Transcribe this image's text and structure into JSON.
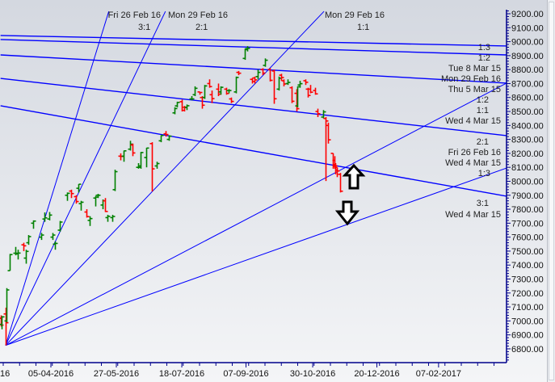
{
  "chart_data": {
    "type": "ohlc",
    "title": "",
    "xlabel": "",
    "ylabel": "",
    "ylim": [
      6700,
      9250
    ],
    "grid": false,
    "colors": {
      "up": "#008000",
      "down": "#ff0000",
      "lines": "#0000ff",
      "axis": "#00008b"
    },
    "y_ticks": [
      "9200.00",
      "9100.00",
      "9000.00",
      "8900.00",
      "8800.00",
      "8700.00",
      "8600.00",
      "8500.00",
      "8400.00",
      "8300.00",
      "8200.00",
      "8100.00",
      "8000.00",
      "7900.00",
      "7800.00",
      "7700.00",
      "7600.00",
      "7500.00",
      "7400.00",
      "7300.00",
      "7200.00",
      "7100.00",
      "7000.00",
      "6900.00",
      "6800.00"
    ],
    "x_ticks": [
      {
        "label": "16",
        "date": "2016-02-13"
      },
      {
        "label": "05-04-2016",
        "date": "2016-04-05"
      },
      {
        "label": "27-05-2016",
        "date": "2016-05-27"
      },
      {
        "label": "18-07-2016",
        "date": "2016-07-18"
      },
      {
        "label": "07-09-2016",
        "date": "2016-09-07"
      },
      {
        "label": "30-10-2016",
        "date": "2016-10-30"
      },
      {
        "label": "20-12-2016",
        "date": "2016-12-20"
      },
      {
        "label": "07-02-2017",
        "date": "2017-02-07"
      }
    ],
    "bars": [
      [
        "2016-02-23",
        7110,
        7120,
        7015,
        7019
      ],
      [
        "2016-02-25",
        7020,
        7040,
        6960,
        6970
      ],
      [
        "2016-02-26",
        6975,
        7035,
        6940,
        7029
      ],
      [
        "2016-02-29",
        7050,
        7095,
        6825,
        6987
      ],
      [
        "2016-03-01",
        7000,
        7235,
        6990,
        7222
      ],
      [
        "2016-03-03",
        7360,
        7480,
        7360,
        7475
      ],
      [
        "2016-03-08",
        7485,
        7530,
        7470,
        7485
      ],
      [
        "2016-03-10",
        7480,
        7510,
        7440,
        7486
      ],
      [
        "2016-03-14",
        7545,
        7560,
        7500,
        7538
      ],
      [
        "2016-03-16",
        7450,
        7510,
        7410,
        7498
      ],
      [
        "2016-03-18",
        7560,
        7615,
        7545,
        7604
      ],
      [
        "2016-03-22",
        7700,
        7720,
        7660,
        7715
      ],
      [
        "2016-03-28",
        7600,
        7630,
        7580,
        7615
      ],
      [
        "2016-03-31",
        7730,
        7777,
        7710,
        7738
      ],
      [
        "2016-04-04",
        7730,
        7780,
        7720,
        7758
      ],
      [
        "2016-04-06",
        7600,
        7630,
        7580,
        7615
      ],
      [
        "2016-04-08",
        7550,
        7570,
        7510,
        7555
      ],
      [
        "2016-04-12",
        7650,
        7716,
        7640,
        7708
      ],
      [
        "2016-04-18",
        7900,
        7920,
        7860,
        7914
      ],
      [
        "2016-04-21",
        7930,
        7940,
        7880,
        7912
      ],
      [
        "2016-04-25",
        7890,
        7900,
        7840,
        7855
      ],
      [
        "2016-04-27",
        7950,
        7980,
        7920,
        7979
      ],
      [
        "2016-04-29",
        7840,
        7860,
        7790,
        7850
      ],
      [
        "2016-05-03",
        7780,
        7800,
        7740,
        7747
      ],
      [
        "2016-05-06",
        7720,
        7750,
        7680,
        7733
      ],
      [
        "2016-05-10",
        7880,
        7895,
        7820,
        7887
      ],
      [
        "2016-05-12",
        7900,
        7910,
        7880,
        7900
      ],
      [
        "2016-05-16",
        7830,
        7870,
        7800,
        7860
      ],
      [
        "2016-05-18",
        7860,
        7880,
        7780,
        7784
      ],
      [
        "2016-05-20",
        7740,
        7760,
        7710,
        7749
      ],
      [
        "2016-05-24",
        7740,
        7760,
        7710,
        7748
      ],
      [
        "2016-05-26",
        7940,
        8083,
        7930,
        8069
      ],
      [
        "2016-05-30",
        8180,
        8200,
        8150,
        8178
      ],
      [
        "2016-06-02",
        8180,
        8220,
        8140,
        8218
      ],
      [
        "2016-06-07",
        8230,
        8290,
        8220,
        8266
      ],
      [
        "2016-06-09",
        8260,
        8270,
        8180,
        8203
      ],
      [
        "2016-06-13",
        8100,
        8130,
        8090,
        8110
      ],
      [
        "2016-06-15",
        8100,
        8210,
        8090,
        8206
      ],
      [
        "2016-06-20",
        8170,
        8240,
        8100,
        8238
      ],
      [
        "2016-06-24",
        8270,
        8280,
        7927,
        8089
      ],
      [
        "2016-06-28",
        8110,
        8140,
        8090,
        8127
      ],
      [
        "2016-07-01",
        8290,
        8330,
        8280,
        8328
      ],
      [
        "2016-07-05",
        8340,
        8360,
        8320,
        8335
      ],
      [
        "2016-07-08",
        8300,
        8330,
        8290,
        8323
      ],
      [
        "2016-07-12",
        8490,
        8530,
        8480,
        8521
      ],
      [
        "2016-07-14",
        8540,
        8570,
        8530,
        8565
      ],
      [
        "2016-07-18",
        8570,
        8585,
        8500,
        8508
      ],
      [
        "2016-07-20",
        8530,
        8540,
        8500,
        8528
      ],
      [
        "2016-07-22",
        8530,
        8550,
        8510,
        8541
      ],
      [
        "2016-07-26",
        8590,
        8610,
        8580,
        8590
      ],
      [
        "2016-07-28",
        8620,
        8680,
        8610,
        8666
      ],
      [
        "2016-08-01",
        8640,
        8640,
        8620,
        8636
      ],
      [
        "2016-08-03",
        8600,
        8610,
        8520,
        8545
      ],
      [
        "2016-08-05",
        8600,
        8690,
        8590,
        8683
      ],
      [
        "2016-08-09",
        8700,
        8730,
        8670,
        8678
      ],
      [
        "2016-08-11",
        8620,
        8650,
        8560,
        8592
      ],
      [
        "2016-08-16",
        8660,
        8700,
        8610,
        8624
      ],
      [
        "2016-08-18",
        8640,
        8680,
        8620,
        8673
      ],
      [
        "2016-08-22",
        8660,
        8670,
        8620,
        8629
      ],
      [
        "2016-08-24",
        8650,
        8660,
        8630,
        8650
      ],
      [
        "2016-08-26",
        8590,
        8600,
        8560,
        8572
      ],
      [
        "2016-08-30",
        8640,
        8750,
        8630,
        8744
      ],
      [
        "2016-09-01",
        8780,
        8790,
        8760,
        8774
      ],
      [
        "2016-09-06",
        8880,
        8950,
        8870,
        8943
      ],
      [
        "2016-09-08",
        8950,
        8968,
        8930,
        8952
      ],
      [
        "2016-09-12",
        8730,
        8740,
        8700,
        8715
      ],
      [
        "2016-09-14",
        8740,
        8750,
        8700,
        8726
      ],
      [
        "2016-09-16",
        8750,
        8800,
        8730,
        8780
      ],
      [
        "2016-09-20",
        8800,
        8810,
        8760,
        8775
      ],
      [
        "2016-09-22",
        8830,
        8880,
        8820,
        8867
      ],
      [
        "2016-09-26",
        8800,
        8810,
        8715,
        8723
      ],
      [
        "2016-09-29",
        8790,
        8800,
        8555,
        8591
      ],
      [
        "2016-10-03",
        8660,
        8750,
        8650,
        8738
      ],
      [
        "2016-10-05",
        8760,
        8770,
        8720,
        8743
      ],
      [
        "2016-10-07",
        8720,
        8730,
        8680,
        8697
      ],
      [
        "2016-10-10",
        8700,
        8730,
        8690,
        8708
      ],
      [
        "2016-10-13",
        8670,
        8680,
        8560,
        8573
      ],
      [
        "2016-10-17",
        8630,
        8660,
        8500,
        8520
      ],
      [
        "2016-10-18",
        8540,
        8680,
        8530,
        8677
      ],
      [
        "2016-10-20",
        8690,
        8720,
        8670,
        8699
      ],
      [
        "2016-10-24",
        8720,
        8730,
        8690,
        8709
      ],
      [
        "2016-10-26",
        8660,
        8670,
        8600,
        8615
      ],
      [
        "2016-10-28",
        8660,
        8690,
        8630,
        8638
      ],
      [
        "2016-11-01",
        8650,
        8670,
        8620,
        8626
      ],
      [
        "2016-11-03",
        8500,
        8520,
        8460,
        8484
      ],
      [
        "2016-11-07",
        8460,
        8510,
        8450,
        8497
      ],
      [
        "2016-11-09",
        8450,
        8460,
        8002,
        8432
      ],
      [
        "2016-11-11",
        8400,
        8420,
        8270,
        8297
      ],
      [
        "2016-11-15",
        8200,
        8200,
        8090,
        8108
      ],
      [
        "2016-11-16",
        8150,
        8180,
        8090,
        8111
      ],
      [
        "2016-11-17",
        8120,
        8130,
        8050,
        8080
      ],
      [
        "2016-11-18",
        8100,
        8100,
        8030,
        8074
      ],
      [
        "2016-11-21",
        8050,
        8060,
        7920,
        7929
      ]
    ],
    "gann_fan_up": {
      "origin": [
        "2016-02-29",
        6825
      ],
      "lines": [
        {
          "to": [
            "2016-05-21",
            9217
          ]
        },
        {
          "to": [
            "2016-07-05",
            9217
          ]
        },
        {
          "to": [
            "2016-11-08",
            9217
          ]
        },
        {
          "to": [
            "2017-04-02",
            8703
          ]
        },
        {
          "to": [
            "2017-04-02",
            8095
          ]
        }
      ]
    },
    "gann_fan_down": {
      "lines": [
        {
          "from": [
            "2016-02-25",
            9044
          ],
          "to": [
            "2017-04-02",
            8969
          ]
        },
        {
          "from": [
            "2016-02-25",
            9015
          ],
          "to": [
            "2017-04-02",
            8905
          ]
        },
        {
          "from": [
            "2016-02-25",
            8905
          ],
          "to": [
            "2017-04-02",
            8703
          ]
        },
        {
          "from": [
            "2016-02-25",
            8737
          ],
          "to": [
            "2017-04-02",
            8327
          ]
        },
        {
          "from": [
            "2016-02-25",
            8541
          ],
          "to": [
            "2017-04-02",
            7893
          ]
        }
      ]
    },
    "annotations_top": [
      {
        "date": "Fri 26 Feb 16",
        "ratio": "3:1"
      },
      {
        "date": "Mon 29 Feb 16",
        "ratio": "2:1"
      },
      {
        "date": "Mon 29 Feb 16",
        "ratio": "1:1"
      }
    ],
    "annotations_right": [
      "1:3",
      "1:2",
      "Tue 8 Mar 15",
      "Mon 29 Feb 16",
      "Thu 5 Mar 15",
      "1:2",
      "1:1",
      "Wed 4 Mar 15",
      "2:1",
      "Fri 26 Feb 16",
      "Wed 4 Mar 15",
      "1:3",
      "3:1",
      "Wed 4 Mar 15"
    ],
    "markers": [
      {
        "type": "arrow-up"
      },
      {
        "type": "arrow-down"
      }
    ]
  }
}
